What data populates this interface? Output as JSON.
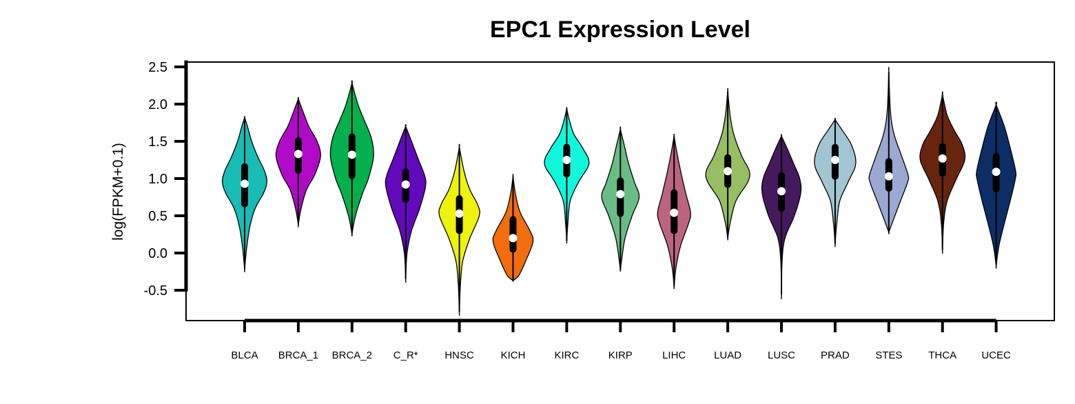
{
  "chart_data": {
    "type": "violin",
    "title": "EPC1 Expression Level",
    "xlabel": "",
    "ylabel": "log(FPKM+0.1)",
    "ylim": [
      -0.92,
      2.55
    ],
    "yticks": [
      -0.5,
      0.0,
      0.5,
      1.0,
      1.5,
      2.0,
      2.5
    ],
    "ytick_labels": [
      "-0.5",
      "0.0",
      "0.5",
      "1.0",
      "1.5",
      "2.0",
      "2.5"
    ],
    "grid": false,
    "categories": [
      "BLCA",
      "BRCA_1",
      "BRCA_2",
      "C_R*",
      "HNSC",
      "KICH",
      "KIRC",
      "KIRP",
      "LIHC",
      "LUAD",
      "LUSC",
      "PRAD",
      "STES",
      "THCA",
      "UCEC"
    ],
    "colors": [
      "#17BDB5",
      "#B10AC7",
      "#03B04D",
      "#6209BC",
      "#EEF20C",
      "#F26D10",
      "#10F7DB",
      "#68BD86",
      "#BC6480",
      "#98BE64",
      "#45195D",
      "#A1C5D2",
      "#9AA8D2",
      "#672510",
      "#0D2D66"
    ],
    "series": [
      {
        "name": "BLCA",
        "min": -0.22,
        "q1": 0.66,
        "median": 0.93,
        "q3": 1.16,
        "max": 1.82
      },
      {
        "name": "BRCA_1",
        "min": 0.38,
        "q1": 1.11,
        "median": 1.33,
        "q3": 1.51,
        "max": 2.07
      },
      {
        "name": "BRCA_2",
        "min": 0.26,
        "q1": 1.04,
        "median": 1.32,
        "q3": 1.56,
        "max": 2.28
      },
      {
        "name": "C_R*",
        "min": -0.35,
        "q1": 0.72,
        "median": 0.92,
        "q3": 1.09,
        "max": 1.7
      },
      {
        "name": "HNSC",
        "min": -0.79,
        "q1": 0.3,
        "median": 0.53,
        "q3": 0.73,
        "max": 1.42
      },
      {
        "name": "KICH",
        "min": -0.37,
        "q1": 0.05,
        "median": 0.2,
        "q3": 0.45,
        "max": 1.03
      },
      {
        "name": "KIRC",
        "min": 0.16,
        "q1": 1.06,
        "median": 1.25,
        "q3": 1.42,
        "max": 1.94
      },
      {
        "name": "KIRP",
        "min": -0.23,
        "q1": 0.53,
        "median": 0.79,
        "q3": 0.97,
        "max": 1.66
      },
      {
        "name": "LIHC",
        "min": -0.45,
        "q1": 0.3,
        "median": 0.54,
        "q3": 0.81,
        "max": 1.57
      },
      {
        "name": "LUAD",
        "min": 0.2,
        "q1": 0.92,
        "median": 1.1,
        "q3": 1.28,
        "max": 2.17
      },
      {
        "name": "LUSC",
        "min": -0.56,
        "q1": 0.6,
        "median": 0.83,
        "q3": 1.04,
        "max": 1.57
      },
      {
        "name": "PRAD",
        "min": 0.12,
        "q1": 1.03,
        "median": 1.25,
        "q3": 1.42,
        "max": 1.79
      },
      {
        "name": "STES",
        "min": 0.28,
        "q1": 0.87,
        "median": 1.03,
        "q3": 1.23,
        "max": 2.43
      },
      {
        "name": "THCA",
        "min": 0.04,
        "q1": 1.07,
        "median": 1.27,
        "q3": 1.43,
        "max": 2.13
      },
      {
        "name": "UCEC",
        "min": -0.17,
        "q1": 0.86,
        "median": 1.09,
        "q3": 1.3,
        "max": 1.99
      }
    ],
    "width_profiles": [
      [
        [
          -0.22,
          0
        ],
        [
          0.05,
          0.08
        ],
        [
          0.35,
          0.22
        ],
        [
          0.6,
          0.45
        ],
        [
          0.8,
          0.8
        ],
        [
          0.95,
          0.95
        ],
        [
          1.1,
          0.85
        ],
        [
          1.3,
          0.55
        ],
        [
          1.5,
          0.3
        ],
        [
          1.7,
          0.12
        ],
        [
          1.82,
          0
        ]
      ],
      [
        [
          0.38,
          0
        ],
        [
          0.6,
          0.12
        ],
        [
          0.85,
          0.35
        ],
        [
          1.05,
          0.7
        ],
        [
          1.3,
          0.95
        ],
        [
          1.5,
          0.8
        ],
        [
          1.7,
          0.45
        ],
        [
          1.9,
          0.2
        ],
        [
          2.07,
          0
        ]
      ],
      [
        [
          0.26,
          0
        ],
        [
          0.5,
          0.15
        ],
        [
          0.8,
          0.45
        ],
        [
          1.0,
          0.7
        ],
        [
          1.3,
          0.92
        ],
        [
          1.55,
          0.82
        ],
        [
          1.8,
          0.5
        ],
        [
          2.0,
          0.25
        ],
        [
          2.28,
          0
        ]
      ],
      [
        [
          -0.35,
          0
        ],
        [
          0.0,
          0.06
        ],
        [
          0.3,
          0.25
        ],
        [
          0.6,
          0.6
        ],
        [
          0.9,
          0.85
        ],
        [
          1.05,
          0.8
        ],
        [
          1.25,
          0.55
        ],
        [
          1.5,
          0.25
        ],
        [
          1.7,
          0
        ]
      ],
      [
        [
          -0.79,
          0
        ],
        [
          -0.4,
          0.05
        ],
        [
          -0.1,
          0.15
        ],
        [
          0.2,
          0.45
        ],
        [
          0.5,
          0.85
        ],
        [
          0.65,
          0.78
        ],
        [
          0.85,
          0.45
        ],
        [
          1.1,
          0.2
        ],
        [
          1.42,
          0
        ]
      ],
      [
        [
          -0.37,
          0
        ],
        [
          -0.3,
          0.25
        ],
        [
          -0.1,
          0.55
        ],
        [
          0.15,
          0.85
        ],
        [
          0.3,
          0.72
        ],
        [
          0.55,
          0.3
        ],
        [
          0.8,
          0.1
        ],
        [
          1.03,
          0
        ]
      ],
      [
        [
          0.16,
          0
        ],
        [
          0.4,
          0.05
        ],
        [
          0.7,
          0.15
        ],
        [
          0.95,
          0.5
        ],
        [
          1.2,
          0.95
        ],
        [
          1.4,
          0.7
        ],
        [
          1.6,
          0.3
        ],
        [
          1.8,
          0.1
        ],
        [
          1.94,
          0
        ]
      ],
      [
        [
          -0.23,
          0
        ],
        [
          -0.1,
          0.05
        ],
        [
          0.2,
          0.2
        ],
        [
          0.5,
          0.5
        ],
        [
          0.75,
          0.8
        ],
        [
          0.95,
          0.6
        ],
        [
          1.2,
          0.35
        ],
        [
          1.4,
          0.2
        ],
        [
          1.66,
          0
        ]
      ],
      [
        [
          -0.45,
          0
        ],
        [
          -0.2,
          0.08
        ],
        [
          0.1,
          0.28
        ],
        [
          0.4,
          0.62
        ],
        [
          0.55,
          0.7
        ],
        [
          0.8,
          0.5
        ],
        [
          1.1,
          0.28
        ],
        [
          1.35,
          0.12
        ],
        [
          1.57,
          0
        ]
      ],
      [
        [
          0.2,
          0
        ],
        [
          0.4,
          0.1
        ],
        [
          0.7,
          0.35
        ],
        [
          0.95,
          0.85
        ],
        [
          1.1,
          0.92
        ],
        [
          1.3,
          0.6
        ],
        [
          1.6,
          0.25
        ],
        [
          1.85,
          0.1
        ],
        [
          2.17,
          0
        ]
      ],
      [
        [
          -0.56,
          0
        ],
        [
          -0.1,
          0.03
        ],
        [
          0.2,
          0.15
        ],
        [
          0.5,
          0.55
        ],
        [
          0.8,
          0.82
        ],
        [
          1.0,
          0.78
        ],
        [
          1.2,
          0.52
        ],
        [
          1.4,
          0.25
        ],
        [
          1.57,
          0
        ]
      ],
      [
        [
          0.12,
          0
        ],
        [
          0.4,
          0.07
        ],
        [
          0.7,
          0.2
        ],
        [
          0.95,
          0.55
        ],
        [
          1.2,
          0.88
        ],
        [
          1.45,
          0.7
        ],
        [
          1.65,
          0.3
        ],
        [
          1.79,
          0
        ]
      ],
      [
        [
          0.28,
          0
        ],
        [
          0.45,
          0.2
        ],
        [
          0.7,
          0.5
        ],
        [
          0.95,
          0.8
        ],
        [
          1.05,
          0.82
        ],
        [
          1.3,
          0.55
        ],
        [
          1.6,
          0.22
        ],
        [
          1.9,
          0.07
        ],
        [
          2.43,
          0
        ]
      ],
      [
        [
          0.04,
          0
        ],
        [
          0.4,
          0.05
        ],
        [
          0.7,
          0.2
        ],
        [
          1.0,
          0.6
        ],
        [
          1.25,
          0.95
        ],
        [
          1.45,
          0.85
        ],
        [
          1.65,
          0.5
        ],
        [
          1.85,
          0.2
        ],
        [
          2.13,
          0
        ]
      ],
      [
        [
          -0.17,
          0
        ],
        [
          0.1,
          0.12
        ],
        [
          0.4,
          0.35
        ],
        [
          0.7,
          0.6
        ],
        [
          1.0,
          0.82
        ],
        [
          1.1,
          0.83
        ],
        [
          1.35,
          0.65
        ],
        [
          1.7,
          0.35
        ],
        [
          1.99,
          0
        ]
      ]
    ]
  }
}
